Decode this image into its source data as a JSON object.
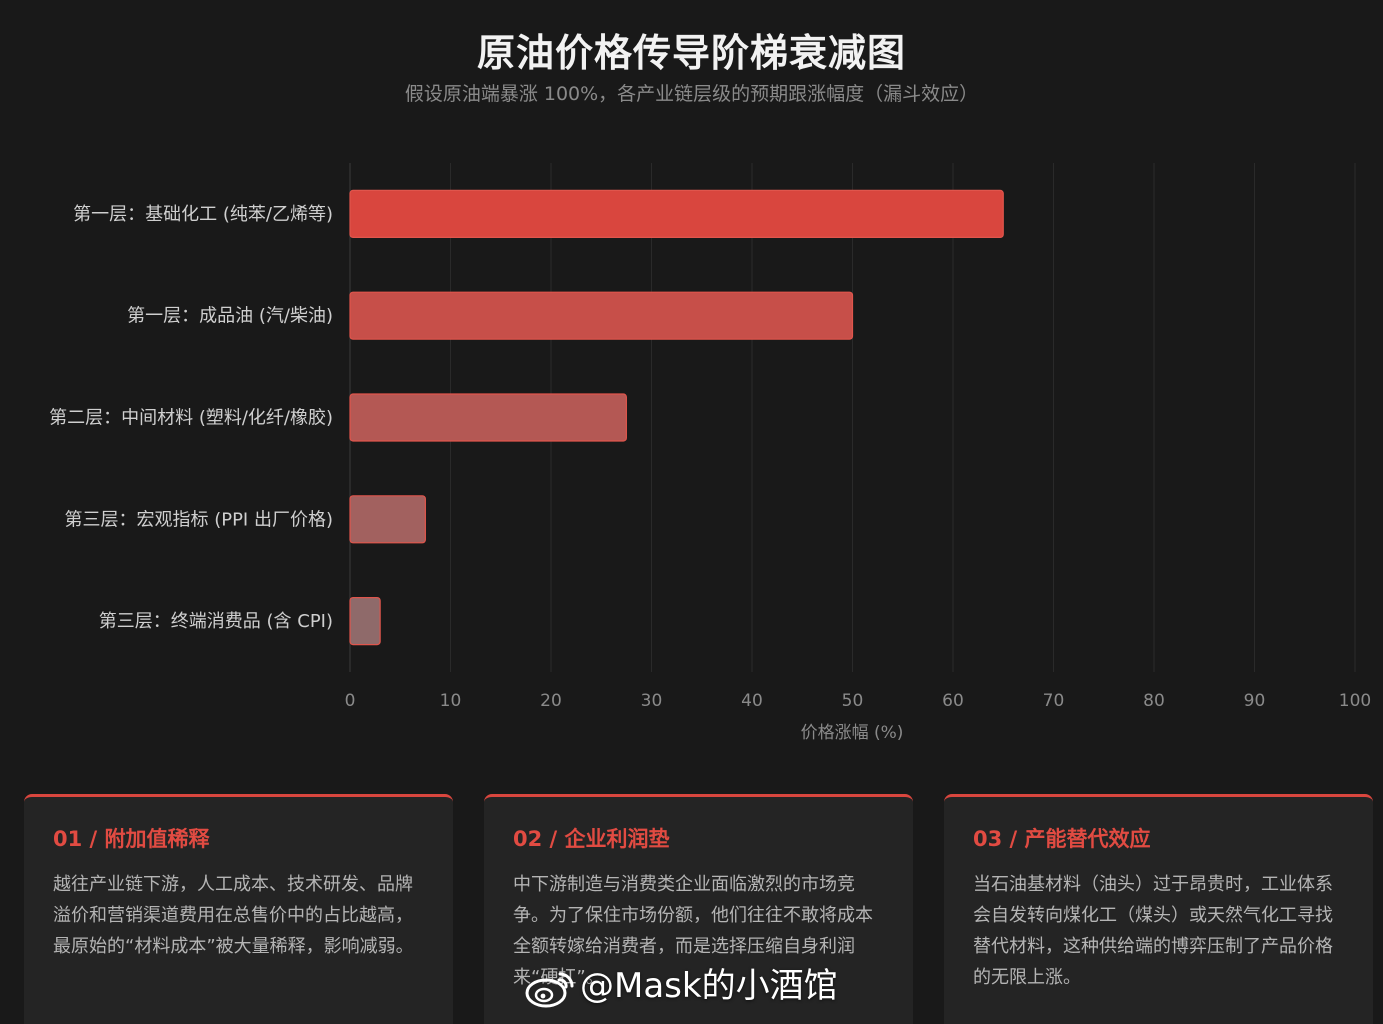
{
  "title": "原油价格传导阶梯衰减图",
  "subtitle": "假设原油端暴涨 100%，各产业链层级的预期跟涨幅度（漏斗效应）",
  "colors": {
    "background": "#191919",
    "bar_start": "#d9463e",
    "bar_end": "#8f6a6a",
    "accent": "#e14b42"
  },
  "chart_data": {
    "type": "bar",
    "orientation": "horizontal",
    "categories": [
      "第一层：基础化工 (纯苯/乙烯等)",
      "第一层：成品油 (汽/柴油)",
      "第二层：中间材料 (塑料/化纤/橡胶)",
      "第三层：宏观指标 (PPI 出厂价格)",
      "第三层：终端消费品 (含 CPI)"
    ],
    "values": [
      65,
      50,
      27.5,
      7.5,
      3
    ],
    "xlabel": "价格涨幅 (%)",
    "ylabel": "",
    "xlim": [
      0,
      100
    ],
    "xticks": [
      "0",
      "10",
      "20",
      "30",
      "40",
      "50",
      "60",
      "70",
      "80",
      "90",
      "100"
    ],
    "grid": true
  },
  "cards": [
    {
      "title": "01 / 附加值稀释",
      "body": "越往产业链下游，人工成本、技术研发、品牌溢价和营销渠道费用在总售价中的占比越高，最原始的“材料成本”被大量稀释，影响减弱。"
    },
    {
      "title": "02 / 企业利润垫",
      "body": "中下游制造与消费类企业面临激烈的市场竞争。为了保住市场份额，他们往往不敢将成本全额转嫁给消费者，而是选择压缩自身利润来“硬扛”。"
    },
    {
      "title": "03 / 产能替代效应",
      "body": "当石油基材料（油头）过于昂贵时，工业体系会自发转向煤化工（煤头）或天然气化工寻找替代材料，这种供给端的博弈压制了产品价格的无限上涨。"
    }
  ],
  "watermark": {
    "icon": "weibo-icon",
    "text": "@Mask的小酒馆"
  }
}
